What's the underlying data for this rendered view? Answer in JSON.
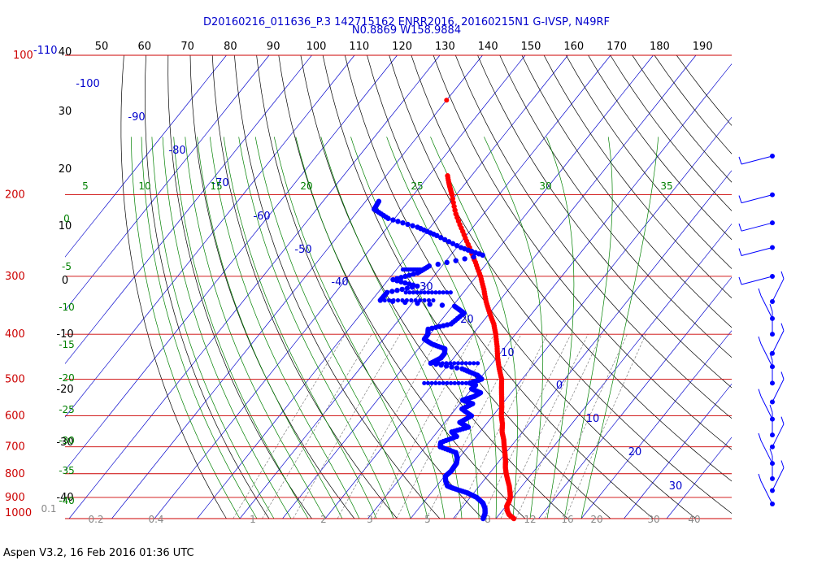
{
  "header": {
    "line1": "D20160216_011636_P.3 142715162 ENRR2016, 20160215N1 G-IVSP, N49RF",
    "line2": "N0.8869 W158.9884"
  },
  "footer": "Aspen V3.2, 16 Feb 2016  01:36 UTC",
  "colors": {
    "pressure_lines": "#cc0000",
    "isotherms": "#0000cc",
    "dry_adiabats": "#000000",
    "moist_adiabats": "#008000",
    "mixing_ratio": "#808080",
    "temperature": "#ff0000",
    "dewpoint": "#0000ff"
  },
  "chart_data": {
    "type": "skew-t log-p sounding",
    "y_axis": {
      "label": "",
      "scale": "log",
      "ticks": [
        "100",
        "200",
        "300",
        "400",
        "500",
        "600",
        "700",
        "800",
        "900",
        "1000"
      ]
    },
    "top_axis_ticks": [
      "50",
      "60",
      "70",
      "80",
      "90",
      "100",
      "110",
      "120",
      "130",
      "140",
      "150",
      "160",
      "170",
      "180",
      "190"
    ],
    "top_left_labels": [
      "100",
      "-110"
    ],
    "potential_temp_labels": [
      "40",
      "30",
      "20",
      "10",
      "0",
      "-10",
      "-20",
      "-30",
      "-40"
    ],
    "theta_e_labels": [
      "0",
      "-5",
      "-10",
      "-15",
      "-20",
      "-25",
      "-30",
      "-35",
      "-40"
    ],
    "isotherm_labels": [
      "-100",
      "-90",
      "-80",
      "-70",
      "-60",
      "-50",
      "-40",
      "-30",
      "-20",
      "-10",
      "0",
      "10",
      "20",
      "30"
    ],
    "moist_adiabat_labels": [
      "5",
      "10",
      "15",
      "20",
      "25",
      "30",
      "35"
    ],
    "mixing_ratio_labels": [
      "0.1",
      "0.2",
      "0.4",
      "1",
      "2",
      "3",
      "5",
      "8",
      "12",
      "16",
      "20",
      "30",
      "40"
    ],
    "temperature_series": {
      "points": [
        [
          1000,
          24.2
        ],
        [
          980,
          22.3
        ],
        [
          960,
          21.1
        ],
        [
          940,
          20.2
        ],
        [
          920,
          19.9
        ],
        [
          900,
          19.4
        ],
        [
          880,
          18.5
        ],
        [
          850,
          17.0
        ],
        [
          825,
          15.5
        ],
        [
          800,
          14.0
        ],
        [
          775,
          12.6
        ],
        [
          750,
          11.4
        ],
        [
          725,
          10.0
        ],
        [
          700,
          8.5
        ],
        [
          675,
          7.0
        ],
        [
          650,
          5.2
        ],
        [
          625,
          3.8
        ],
        [
          600,
          2.0
        ],
        [
          575,
          0.5
        ],
        [
          550,
          -1.2
        ],
        [
          525,
          -3.0
        ],
        [
          500,
          -4.8
        ],
        [
          475,
          -7.3
        ],
        [
          450,
          -9.7
        ],
        [
          425,
          -12.0
        ],
        [
          400,
          -14.6
        ],
        [
          380,
          -17.0
        ],
        [
          360,
          -20.0
        ],
        [
          340,
          -23.0
        ],
        [
          320,
          -25.8
        ],
        [
          300,
          -29.0
        ],
        [
          280,
          -32.8
        ],
        [
          260,
          -37.0
        ],
        [
          240,
          -41.6
        ],
        [
          220,
          -46.5
        ],
        [
          200,
          -51.0
        ],
        [
          190,
          -53.6
        ],
        [
          180,
          -56.1
        ]
      ],
      "isolated_point": [
        125,
        -70.0
      ]
    },
    "dewpoint_series": {
      "points": [
        [
          1000,
          17.0
        ],
        [
          975,
          16.5
        ],
        [
          950,
          15.5
        ],
        [
          925,
          14.0
        ],
        [
          900,
          11.5
        ],
        [
          880,
          8.5
        ],
        [
          860,
          4.3
        ],
        [
          850,
          2.5
        ],
        [
          830,
          1.2
        ],
        [
          810,
          0.2
        ],
        [
          790,
          0.6
        ],
        [
          775,
          0.5
        ],
        [
          760,
          0.4
        ],
        [
          740,
          -0.4
        ],
        [
          720,
          -1.8
        ],
        [
          700,
          -6.5
        ],
        [
          685,
          -7.2
        ],
        [
          665,
          -4.6
        ],
        [
          650,
          -6.6
        ],
        [
          635,
          -3.6
        ],
        [
          620,
          -6.5
        ],
        [
          600,
          -5.0
        ],
        [
          580,
          -8.5
        ],
        [
          565,
          -7.0
        ],
        [
          555,
          -10.0
        ],
        [
          545,
          -8.0
        ],
        [
          535,
          -7.2
        ],
        [
          525,
          -10.0
        ],
        [
          515,
          -9.8
        ],
        [
          510,
          -11.5
        ],
        [
          500,
          -9.5
        ],
        [
          490,
          -11.3
        ],
        [
          475,
          -16.0
        ],
        [
          462,
          -24.4
        ],
        [
          450,
          -23.0
        ],
        [
          440,
          -23.0
        ],
        [
          430,
          -23.8
        ],
        [
          420,
          -27.7
        ],
        [
          410,
          -30.4
        ],
        [
          400,
          -30.5
        ],
        [
          390,
          -31.4
        ],
        [
          380,
          -27.0
        ],
        [
          360,
          -26.0
        ],
        [
          348,
          -29.5
        ],
        [
          338,
          -48.0
        ],
        [
          325,
          -47.9
        ],
        [
          315,
          -42.0
        ],
        [
          305,
          -48.9
        ],
        [
          295,
          -44.4
        ],
        [
          285,
          -43.0
        ],
        [
          270,
          -32.5
        ],
        [
          260,
          -39.0
        ],
        [
          245,
          -46.9
        ],
        [
          235,
          -53.0
        ],
        [
          225,
          -61.5
        ],
        [
          215,
          -66.5
        ],
        [
          205,
          -67.0
        ]
      ],
      "dry_excursions": [
        {
          "pressure": 290,
          "from": -44.4,
          "to": -48.5
        },
        {
          "pressure": 325,
          "from": -43.5,
          "to": -33.0
        },
        {
          "pressure": 338,
          "from": -48.0,
          "to": -35.6
        },
        {
          "pressure": 462,
          "from": -24.4,
          "to": -13.4
        },
        {
          "pressure": 510,
          "from": -11.5,
          "to": -22.2
        }
      ]
    },
    "wind_barbs": {
      "pressures": [
        165,
        200,
        230,
        260,
        300,
        340,
        370,
        400,
        440,
        470,
        510,
        560,
        610,
        660,
        700,
        760,
        820,
        870,
        930
      ]
    }
  }
}
